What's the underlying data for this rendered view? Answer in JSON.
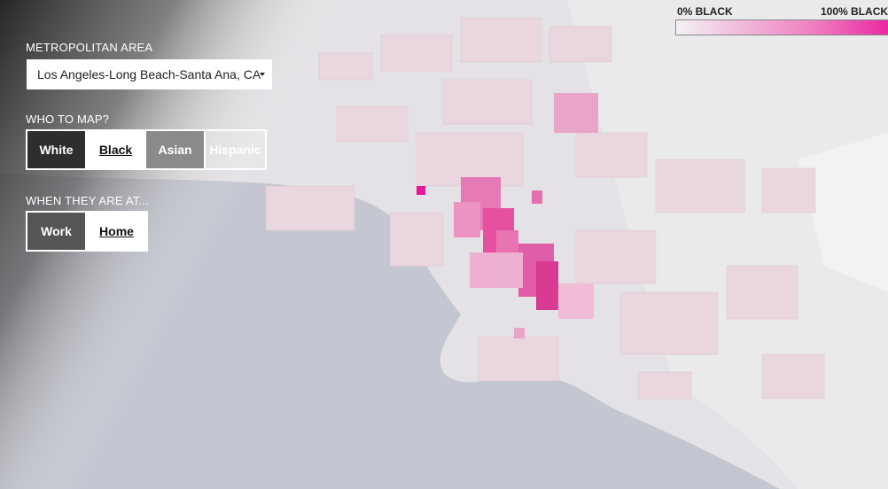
{
  "panel": {
    "metro_label": "METROPOLITAN AREA",
    "metro_value": "Los Angeles-Long Beach-Santa Ana, CA",
    "who_label": "WHO TO MAP?",
    "who_options": [
      {
        "label": "White",
        "active": false
      },
      {
        "label": "Black",
        "active": true
      },
      {
        "label": "Asian",
        "active": false
      },
      {
        "label": "Hispanic",
        "active": false
      }
    ],
    "when_label": "WHEN THEY ARE AT...",
    "when_options": [
      {
        "label": "Work",
        "active": false
      },
      {
        "label": "Home",
        "active": true
      }
    ]
  },
  "legend": {
    "min_label": "0% BLACK",
    "max_label": "100% BLACK"
  }
}
